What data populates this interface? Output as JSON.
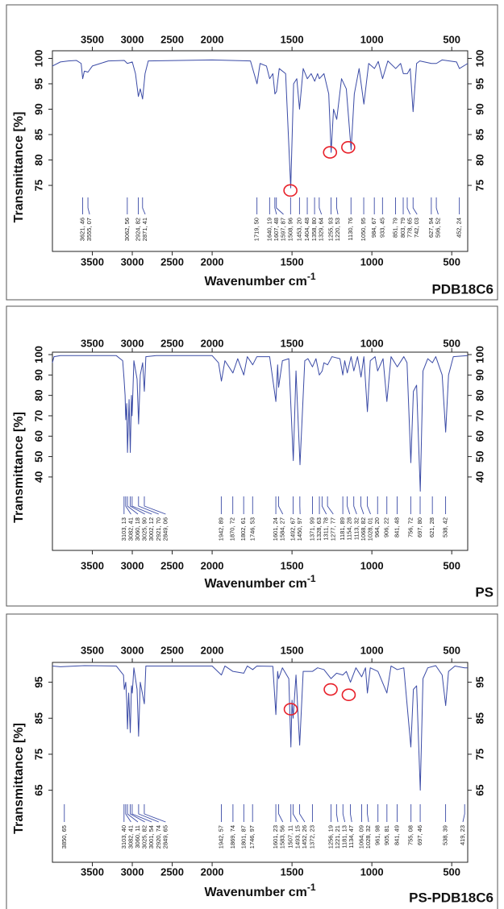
{
  "chart_data": [
    {
      "type": "line",
      "title": "PDB18C6",
      "y_label": "Transmittance [%]",
      "x_label": "Wavenumber cm",
      "x_label_superscript": "-1",
      "xlim": [
        4000,
        400
      ],
      "x_break": 2000,
      "x_break_factor": 2,
      "ylim": [
        62,
        101.5
      ],
      "xticks": [
        3500,
        3000,
        2500,
        2000,
        1500,
        1000,
        500
      ],
      "yticks": [
        75,
        80,
        85,
        90,
        95,
        100
      ],
      "color": "#3b4ba6",
      "highlight_color": "#e8212a",
      "x": [
        4000,
        3900,
        3800,
        3700,
        3640,
        3621,
        3600,
        3555,
        3500,
        3400,
        3300,
        3100,
        3062,
        3000,
        2960,
        2924,
        2900,
        2871,
        2840,
        2800,
        2000,
        1760,
        1719,
        1700,
        1660,
        1640,
        1620,
        1607,
        1597,
        1580,
        1540,
        1508,
        1490,
        1470,
        1453,
        1430,
        1404,
        1380,
        1358,
        1340,
        1329,
        1300,
        1270,
        1255,
        1240,
        1220,
        1190,
        1160,
        1130,
        1110,
        1080,
        1050,
        1020,
        984,
        960,
        933,
        900,
        851,
        820,
        803,
        778,
        760,
        742,
        720,
        700,
        627,
        596,
        560,
        470,
        452,
        400
      ],
      "values": [
        98.5,
        99.3,
        99.5,
        99.6,
        99,
        96,
        97.5,
        97.3,
        98.5,
        99,
        99.5,
        99.6,
        99,
        99.3,
        97,
        92.5,
        94,
        92,
        97,
        99.5,
        99.7,
        99.5,
        95,
        99,
        98.5,
        96,
        97,
        93,
        93.5,
        98,
        97,
        74.5,
        95,
        96,
        90,
        98,
        96,
        97,
        95.5,
        97,
        96,
        97,
        93,
        81.5,
        90,
        88,
        96,
        94,
        82,
        93,
        98,
        91,
        99,
        98,
        99.4,
        96,
        99.5,
        98,
        99,
        97,
        97,
        98,
        89.5,
        99,
        99.5,
        99,
        99,
        99.7,
        99.3,
        98,
        99
      ],
      "highlights": [
        {
          "x": 1510,
          "y": 74
        },
        {
          "x": 1262,
          "y": 81.5
        },
        {
          "x": 1148,
          "y": 82.5
        }
      ],
      "peak_labels": [
        {
          "value": 3621.46,
          "label": "3621, 46"
        },
        {
          "value": 3555.07,
          "label": "3555, 07"
        },
        {
          "value": 3062.56,
          "label": "3062, 56"
        },
        {
          "value": 2924.82,
          "label": "2924, 82"
        },
        {
          "value": 2871.41,
          "label": "2871, 41"
        },
        {
          "value": 1719.5,
          "label": "1719, 50"
        },
        {
          "value": 1640.19,
          "label": "1640, 19"
        },
        {
          "value": 1607.48,
          "label": "1607, 48"
        },
        {
          "value": 1597.87,
          "label": "1597, 87"
        },
        {
          "value": 1508.96,
          "label": "1508, 96"
        },
        {
          "value": 1453.2,
          "label": "1453, 20"
        },
        {
          "value": 1404.48,
          "label": "1404, 48"
        },
        {
          "value": 1358.8,
          "label": "1358, 80"
        },
        {
          "value": 1329.64,
          "label": "1329, 64"
        },
        {
          "value": 1255.93,
          "label": "1255, 93"
        },
        {
          "value": 1220.53,
          "label": "1220, 53"
        },
        {
          "value": 1130.76,
          "label": "1130, 76"
        },
        {
          "value": 1050.95,
          "label": "1050, 95"
        },
        {
          "value": 984.67,
          "label": "984, 67"
        },
        {
          "value": 933.45,
          "label": "933, 45"
        },
        {
          "value": 851.79,
          "label": "851, 79"
        },
        {
          "value": 803.79,
          "label": "803, 79"
        },
        {
          "value": 778.65,
          "label": "778, 65"
        },
        {
          "value": 742.03,
          "label": "742, 03"
        },
        {
          "value": 627.94,
          "label": "627, 94"
        },
        {
          "value": 596.52,
          "label": "596, 52"
        },
        {
          "value": 452.24,
          "label": "452, 24"
        }
      ]
    },
    {
      "type": "line",
      "title": "PS",
      "y_label": "Transmittance [%]",
      "x_label": "Wavenumber cm",
      "x_label_superscript": "-1",
      "xlim": [
        4000,
        400
      ],
      "x_break": 2000,
      "x_break_factor": 2,
      "ylim": [
        4,
        101.2
      ],
      "xticks": [
        3500,
        3000,
        2500,
        2000,
        1500,
        1000,
        500
      ],
      "yticks": [
        40,
        50,
        60,
        70,
        80,
        90,
        100
      ],
      "color": "#3b4ba6",
      "x": [
        4000,
        3980,
        3900,
        3200,
        3120,
        3103,
        3090,
        3082,
        3070,
        3060,
        3040,
        3025,
        3010,
        3002,
        2980,
        2940,
        2921,
        2900,
        2870,
        2849,
        2830,
        2700,
        2000,
        1960,
        1942,
        1920,
        1870,
        1840,
        1802,
        1780,
        1746,
        1720,
        1640,
        1601,
        1590,
        1584,
        1560,
        1520,
        1492,
        1475,
        1450,
        1420,
        1400,
        1372,
        1350,
        1329,
        1311,
        1300,
        1277,
        1250,
        1200,
        1182,
        1170,
        1154,
        1130,
        1113,
        1090,
        1068,
        1050,
        1028,
        1010,
        980,
        964,
        930,
        906,
        880,
        841,
        800,
        780,
        756,
        740,
        720,
        697,
        680,
        650,
        621,
        600,
        560,
        538,
        520,
        490,
        400
      ],
      "values": [
        96,
        99,
        99.5,
        99.5,
        97,
        88,
        80,
        68,
        76,
        52,
        78,
        52,
        80,
        70,
        97,
        88,
        66,
        90,
        96,
        82,
        99,
        99.5,
        99.5,
        96,
        87,
        97,
        91,
        98,
        90,
        99,
        95,
        99,
        99,
        77,
        95,
        84,
        97,
        98,
        48,
        92,
        46,
        97,
        98,
        94,
        98,
        90,
        92,
        96,
        95,
        99,
        98,
        90,
        97,
        91,
        99,
        92,
        99,
        89,
        99,
        72,
        97,
        99,
        92,
        98,
        77,
        99,
        94,
        99,
        96,
        47,
        82,
        85,
        33,
        92,
        98,
        96,
        99,
        90,
        62,
        90,
        99,
        99.5
      ],
      "peak_labels": [
        {
          "value": 3103.13,
          "label": "3103, 13"
        },
        {
          "value": 3082.41,
          "label": "3082, 41"
        },
        {
          "value": 3060.18,
          "label": "3060, 18"
        },
        {
          "value": 3025.9,
          "label": "3025, 90"
        },
        {
          "value": 3002.12,
          "label": "3002, 12"
        },
        {
          "value": 2921.7,
          "label": "2921, 70"
        },
        {
          "value": 2849.06,
          "label": "2849, 06"
        },
        {
          "value": 1942.89,
          "label": "1942, 89"
        },
        {
          "value": 1870.72,
          "label": "1870, 72"
        },
        {
          "value": 1802.61,
          "label": "1802, 61"
        },
        {
          "value": 1746.53,
          "label": "1746, 53"
        },
        {
          "value": 1601.24,
          "label": "1601, 24"
        },
        {
          "value": 1584.27,
          "label": "1584, 27"
        },
        {
          "value": 1492.67,
          "label": "1492, 67"
        },
        {
          "value": 1450.97,
          "label": "1450, 97"
        },
        {
          "value": 1371.99,
          "label": "1371, 99"
        },
        {
          "value": 1328.63,
          "label": "1328, 63"
        },
        {
          "value": 1311.78,
          "label": "1311, 78"
        },
        {
          "value": 1277.77,
          "label": "1277, 77"
        },
        {
          "value": 1181.89,
          "label": "1181, 89"
        },
        {
          "value": 1154.28,
          "label": "1154, 28"
        },
        {
          "value": 1113.32,
          "label": "1113, 32"
        },
        {
          "value": 1068.82,
          "label": "1068, 82"
        },
        {
          "value": 1028.01,
          "label": "1028, 01"
        },
        {
          "value": 964.2,
          "label": "964, 20"
        },
        {
          "value": 906.22,
          "label": "906, 22"
        },
        {
          "value": 841.48,
          "label": "841, 48"
        },
        {
          "value": 756.72,
          "label": "756, 72"
        },
        {
          "value": 697.8,
          "label": "697, 80"
        },
        {
          "value": 621.28,
          "label": "621, 28"
        },
        {
          "value": 538.42,
          "label": "538, 42"
        }
      ]
    },
    {
      "type": "line",
      "title": "PS-PDB18C6",
      "y_label": "Transmittance [%]",
      "x_label": "Wavenumber cm",
      "x_label_superscript": "-1",
      "xlim": [
        4000,
        400
      ],
      "x_break": 2000,
      "x_break_factor": 2,
      "ylim": [
        45,
        100.5
      ],
      "xticks": [
        3500,
        3000,
        2500,
        2000,
        1500,
        1000,
        500
      ],
      "yticks": [
        65,
        75,
        85,
        95
      ],
      "color": "#3b4ba6",
      "highlight_color": "#e8212a",
      "x": [
        4000,
        3900,
        3600,
        3200,
        3110,
        3100,
        3082,
        3070,
        3060,
        3045,
        3025,
        3010,
        3000,
        2980,
        2940,
        2921,
        2900,
        2849,
        2830,
        2000,
        1942,
        1920,
        1870,
        1802,
        1780,
        1746,
        1720,
        1620,
        1601,
        1590,
        1584,
        1560,
        1520,
        1507,
        1500,
        1493,
        1475,
        1452,
        1430,
        1372,
        1340,
        1300,
        1256,
        1221,
        1182,
        1160,
        1134,
        1100,
        1064,
        1040,
        1028,
        1010,
        962,
        906,
        880,
        841,
        800,
        756,
        740,
        720,
        697,
        680,
        650,
        600,
        560,
        538,
        520,
        480,
        419,
        400
      ],
      "values": [
        99.5,
        99.3,
        99.6,
        99.5,
        97,
        93,
        95,
        90,
        82,
        92,
        81,
        94,
        92,
        99,
        93,
        80,
        95,
        89,
        99.5,
        99.5,
        97,
        99.5,
        98,
        97.5,
        99.5,
        98.5,
        99.5,
        99.4,
        86,
        98,
        96,
        99,
        96,
        77,
        90,
        85,
        97,
        77.5,
        98,
        98,
        99,
        98.5,
        96,
        97.5,
        97,
        98,
        95,
        99,
        96.5,
        99,
        92,
        99,
        98,
        92,
        99.5,
        98.5,
        99,
        77,
        93,
        94,
        65,
        96,
        99,
        99.6,
        97,
        88.5,
        98,
        99.5,
        99,
        99
      ],
      "highlights": [
        {
          "x": 1508,
          "y": 87.5
        },
        {
          "x": 1258,
          "y": 93
        },
        {
          "x": 1145,
          "y": 91.5
        }
      ],
      "peak_labels": [
        {
          "value": 3850.65,
          "label": "3850, 65"
        },
        {
          "value": 3103.4,
          "label": "3103, 40"
        },
        {
          "value": 3082.41,
          "label": "3082, 41"
        },
        {
          "value": 3060.11,
          "label": "3060, 11"
        },
        {
          "value": 3025.82,
          "label": "3025, 82"
        },
        {
          "value": 3001.54,
          "label": "3001, 54"
        },
        {
          "value": 2920.74,
          "label": "2920, 74"
        },
        {
          "value": 2849.65,
          "label": "2849, 65"
        },
        {
          "value": 1942.57,
          "label": "1942, 57"
        },
        {
          "value": 1869.74,
          "label": "1869, 74"
        },
        {
          "value": 1801.87,
          "label": "1801, 87"
        },
        {
          "value": 1746.97,
          "label": "1746, 97"
        },
        {
          "value": 1601.23,
          "label": "1601, 23"
        },
        {
          "value": 1583.56,
          "label": "1583, 56"
        },
        {
          "value": 1507.11,
          "label": "1507, 11"
        },
        {
          "value": 1493.15,
          "label": "1493, 15"
        },
        {
          "value": 1452.26,
          "label": "1452, 26"
        },
        {
          "value": 1372.23,
          "label": "1372, 23"
        },
        {
          "value": 1256.19,
          "label": "1256, 19"
        },
        {
          "value": 1221.21,
          "label": "1221, 21"
        },
        {
          "value": 1181.13,
          "label": "1181, 13"
        },
        {
          "value": 1134.47,
          "label": "1134, 47"
        },
        {
          "value": 1064.09,
          "label": "1064, 09"
        },
        {
          "value": 1028.32,
          "label": "1028, 32"
        },
        {
          "value": 961.98,
          "label": "961, 98"
        },
        {
          "value": 905.81,
          "label": "905, 81"
        },
        {
          "value": 841.49,
          "label": "841, 49"
        },
        {
          "value": 755.08,
          "label": "755, 08"
        },
        {
          "value": 697.46,
          "label": "697, 46"
        },
        {
          "value": 538.39,
          "label": "538, 39"
        },
        {
          "value": 419.23,
          "label": "419, 23"
        }
      ]
    }
  ]
}
